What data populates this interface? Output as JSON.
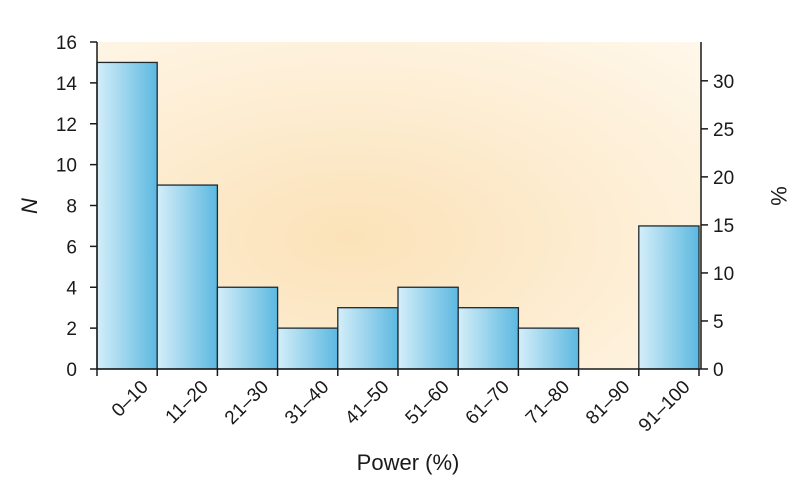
{
  "chart_data": {
    "type": "bar",
    "title": "",
    "xlabel": "Power (%)",
    "ylabel": "N",
    "y2label": "%",
    "categories": [
      "0–10",
      "11–20",
      "21–30",
      "31–40",
      "41–50",
      "51–60",
      "61–70",
      "71–80",
      "81–90",
      "91–100"
    ],
    "values": [
      15,
      9,
      4,
      2,
      3,
      4,
      3,
      2,
      0,
      7
    ],
    "ylim": [
      0,
      16
    ],
    "yticks": [
      0,
      2,
      4,
      6,
      8,
      10,
      12,
      14,
      16
    ],
    "y2lim": [
      0,
      34.04
    ],
    "y2ticks": [
      0,
      5,
      10,
      15,
      20,
      25,
      30
    ],
    "grid": false,
    "legend": "none",
    "colors": {
      "bar_light": "#d4eef9",
      "bar_dark": "#5cb8e0",
      "bar_edge": "#1f2a30",
      "background_warm": "#fbe2b8",
      "background_light": "#fff7ea",
      "axis": "#1a1a1a"
    }
  }
}
